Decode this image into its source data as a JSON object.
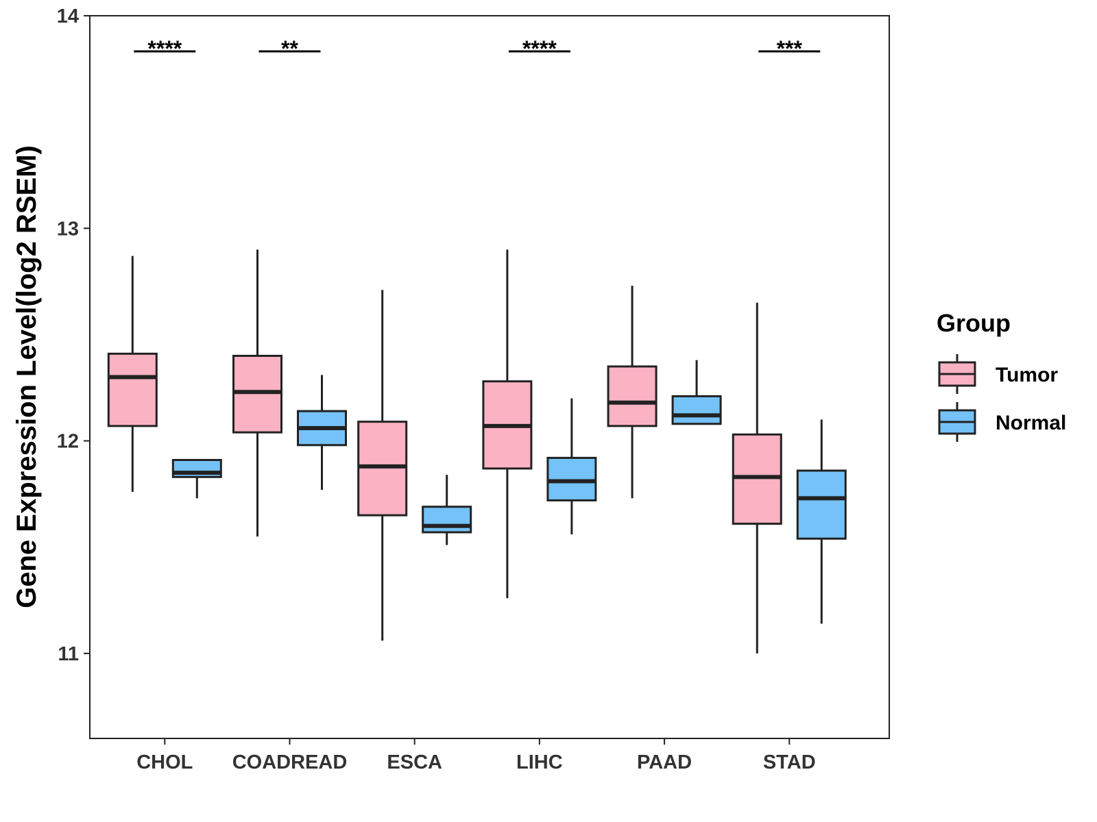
{
  "chart_data": {
    "type": "boxplot",
    "title": "",
    "xlabel": "",
    "ylabel": "Gene Expression Level(log2 RSEM)",
    "ylim": [
      10.6,
      14.0
    ],
    "yticks": [
      11,
      12,
      13,
      14
    ],
    "categories": [
      "CHOL",
      "COADREAD",
      "ESCA",
      "LIHC",
      "PAAD",
      "STAD"
    ],
    "legend": {
      "title": "Group",
      "position": "right",
      "entries": [
        {
          "name": "Tumor",
          "color": "#FBB2C3"
        },
        {
          "name": "Normal",
          "color": "#74C2F7"
        }
      ]
    },
    "series": [
      {
        "name": "Tumor",
        "color": "#FBB2C3",
        "boxes": [
          {
            "category": "CHOL",
            "min": 11.76,
            "q1": 12.07,
            "median": 12.3,
            "q3": 12.41,
            "max": 12.87
          },
          {
            "category": "COADREAD",
            "min": 11.55,
            "q1": 12.04,
            "median": 12.23,
            "q3": 12.4,
            "max": 12.9
          },
          {
            "category": "ESCA",
            "min": 11.06,
            "q1": 11.65,
            "median": 11.88,
            "q3": 12.09,
            "max": 12.71
          },
          {
            "category": "LIHC",
            "min": 11.26,
            "q1": 11.87,
            "median": 12.07,
            "q3": 12.28,
            "max": 12.9
          },
          {
            "category": "PAAD",
            "min": 11.73,
            "q1": 12.07,
            "median": 12.18,
            "q3": 12.35,
            "max": 12.73
          },
          {
            "category": "STAD",
            "min": 11.0,
            "q1": 11.61,
            "median": 11.83,
            "q3": 12.03,
            "max": 12.65
          }
        ]
      },
      {
        "name": "Normal",
        "color": "#74C2F7",
        "boxes": [
          {
            "category": "CHOL",
            "min": 11.73,
            "q1": 11.83,
            "median": 11.85,
            "q3": 11.91,
            "max": 11.91
          },
          {
            "category": "COADREAD",
            "min": 11.77,
            "q1": 11.98,
            "median": 12.06,
            "q3": 12.14,
            "max": 12.31
          },
          {
            "category": "ESCA",
            "min": 11.51,
            "q1": 11.57,
            "median": 11.6,
            "q3": 11.69,
            "max": 11.84
          },
          {
            "category": "LIHC",
            "min": 11.56,
            "q1": 11.72,
            "median": 11.81,
            "q3": 11.92,
            "max": 12.2
          },
          {
            "category": "PAAD",
            "min": 12.08,
            "q1": 12.08,
            "median": 12.12,
            "q3": 12.21,
            "max": 12.38
          },
          {
            "category": "STAD",
            "min": 11.14,
            "q1": 11.54,
            "median": 11.73,
            "q3": 11.86,
            "max": 12.1
          }
        ]
      }
    ],
    "significance": [
      {
        "category": "CHOL",
        "label": "****"
      },
      {
        "category": "COADREAD",
        "label": "**"
      },
      {
        "category": "LIHC",
        "label": "****"
      },
      {
        "category": "STAD",
        "label": "***"
      }
    ]
  }
}
